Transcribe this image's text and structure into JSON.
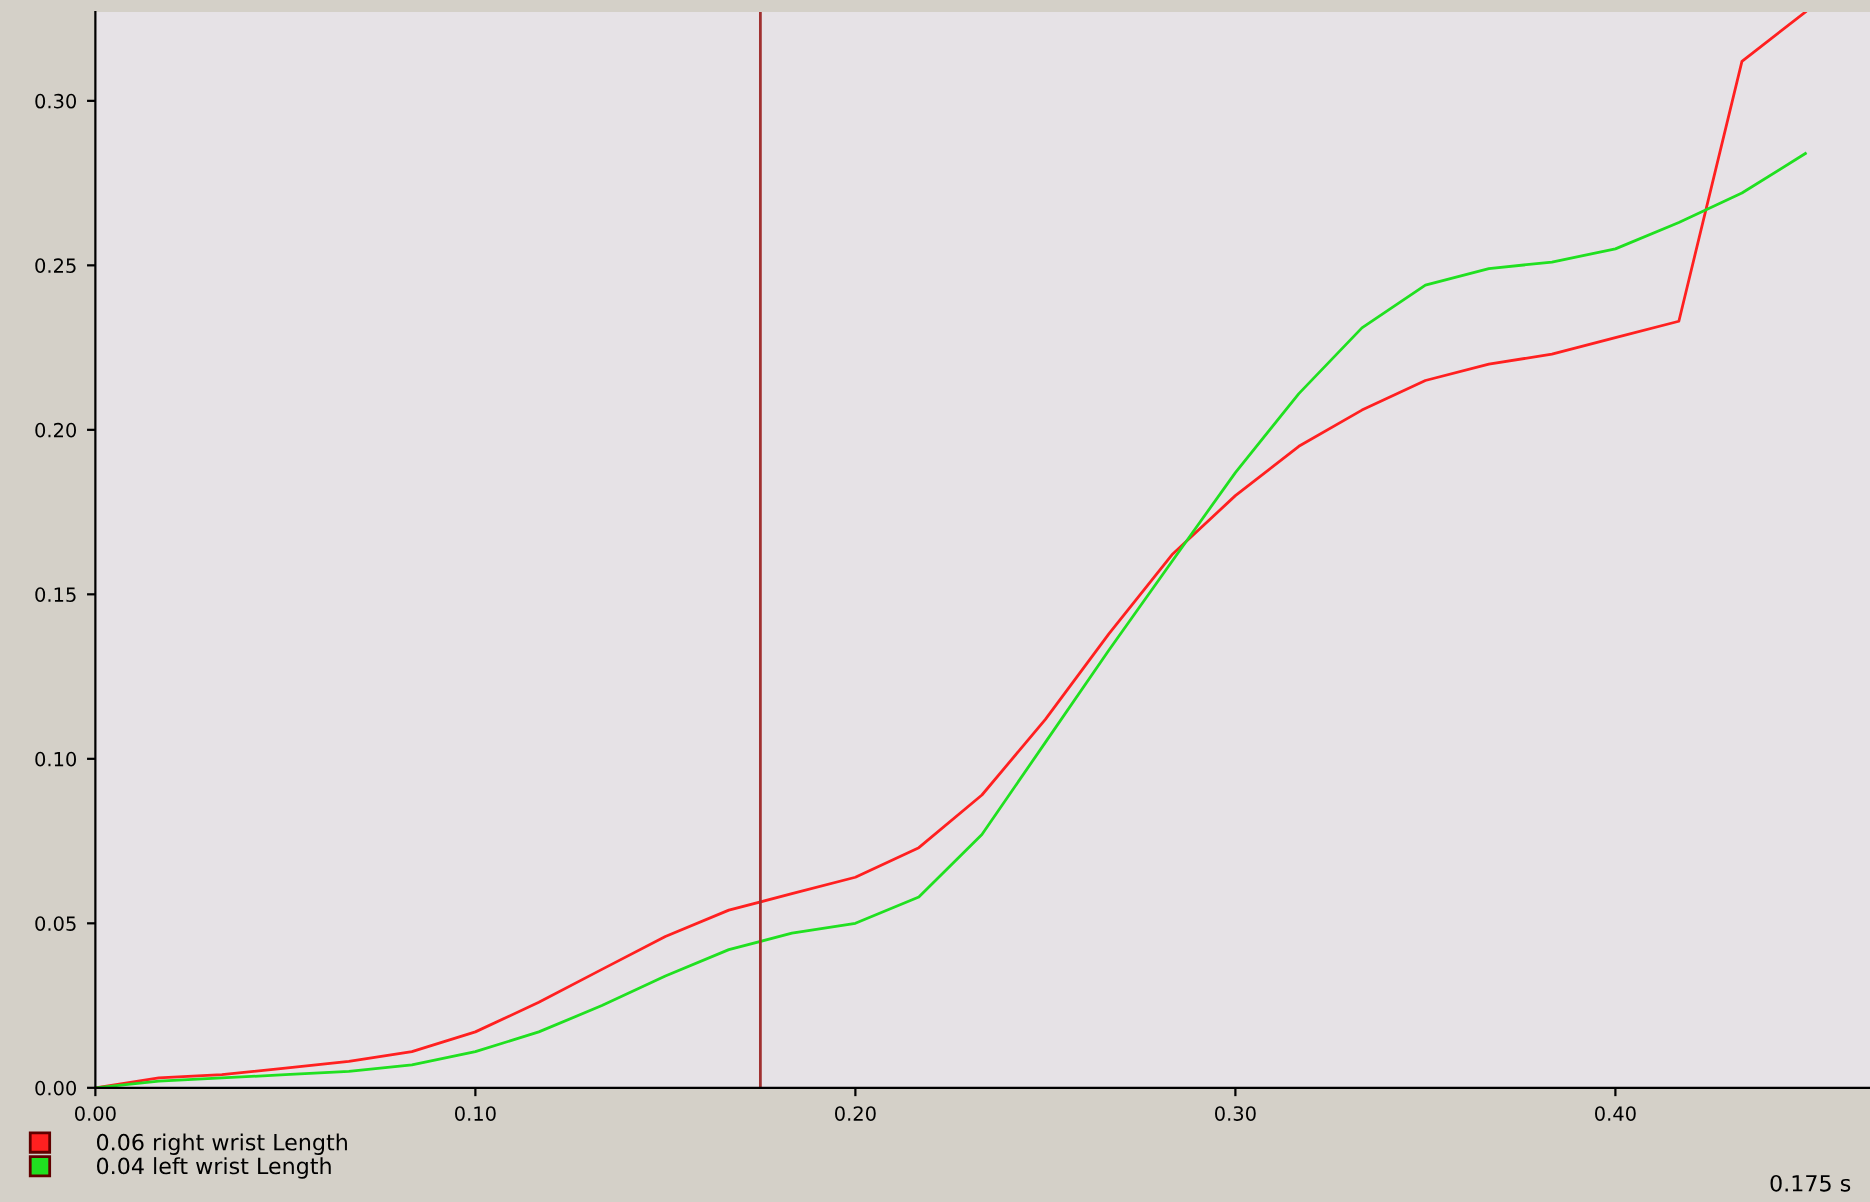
{
  "chart_data": {
    "type": "line",
    "x": [
      0,
      0.0167,
      0.0333,
      0.05,
      0.0667,
      0.0833,
      0.1,
      0.1167,
      0.1333,
      0.15,
      0.1667,
      0.1833,
      0.2,
      0.2167,
      0.2333,
      0.25,
      0.2667,
      0.2833,
      0.3,
      0.3167,
      0.3333,
      0.35,
      0.3667,
      0.3833,
      0.4,
      0.4167,
      0.4333,
      0.45
    ],
    "series": [
      {
        "name": "0.06 right wrist Length",
        "color": "#ff2020",
        "values": [
          0,
          0.003,
          0.004,
          0.006,
          0.008,
          0.011,
          0.017,
          0.026,
          0.036,
          0.046,
          0.054,
          0.059,
          0.064,
          0.073,
          0.089,
          0.112,
          0.138,
          0.162,
          0.18,
          0.195,
          0.206,
          0.215,
          0.22,
          0.223,
          0.228,
          0.233,
          0.312,
          0.327
        ]
      },
      {
        "name": "0.04 left wrist Length",
        "color": "#20e020",
        "values": [
          0,
          0.002,
          0.003,
          0.004,
          0.005,
          0.007,
          0.011,
          0.017,
          0.025,
          0.034,
          0.042,
          0.047,
          0.05,
          0.058,
          0.077,
          0.105,
          0.133,
          0.16,
          0.187,
          0.211,
          0.231,
          0.244,
          0.249,
          0.251,
          0.255,
          0.263,
          0.272,
          0.284
        ]
      }
    ],
    "xlim": [
      0,
      0.467
    ],
    "ylim": [
      0,
      0.327
    ],
    "xticks": [
      {
        "value": 0,
        "label": "0.00"
      },
      {
        "value": 0.1,
        "label": "0.10"
      },
      {
        "value": 0.2,
        "label": "0.20"
      },
      {
        "value": 0.3,
        "label": "0.30"
      },
      {
        "value": 0.4,
        "label": "0.40"
      }
    ],
    "yticks": [
      {
        "value": 0,
        "label": "0.00"
      },
      {
        "value": 0.05,
        "label": "0.05"
      },
      {
        "value": 0.1,
        "label": "0.10"
      },
      {
        "value": 0.15,
        "label": "0.15"
      },
      {
        "value": 0.2,
        "label": "0.20"
      },
      {
        "value": 0.25,
        "label": "0.25"
      },
      {
        "value": 0.3,
        "label": "0.30"
      }
    ],
    "ref_lines": [
      {
        "axis": "x",
        "value": 0.175,
        "color": "#a03030"
      }
    ],
    "annotations": [
      "0.175 s"
    ],
    "grid": false,
    "legend": "bottom",
    "marker": "none",
    "line_style": "solid"
  }
}
